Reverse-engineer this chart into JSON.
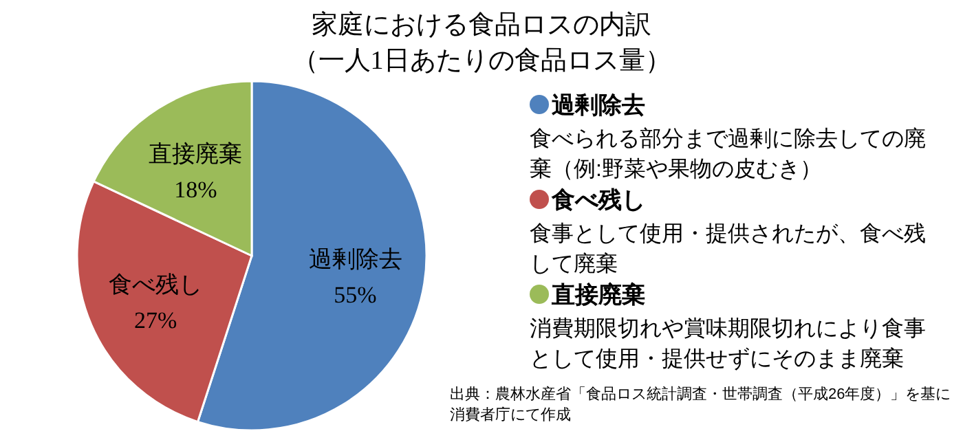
{
  "chart_data": {
    "type": "pie",
    "title": "家庭における食品ロスの内訳",
    "subtitle": "（一人1日あたりの食品ロス量）",
    "categories": [
      "過剰除去",
      "食べ残し",
      "直接廃棄"
    ],
    "values": [
      55,
      27,
      18
    ],
    "colors": [
      "#4f81bd",
      "#c0504d",
      "#9bbb59"
    ],
    "value_labels": [
      "55%",
      "27%",
      "18%"
    ],
    "legend": "right",
    "annotations": [
      "食べられる部分まで過剰に除去しての廃棄（例:野菜や果物の皮むき）",
      "食事として使用・提供されたが、食べ残して廃棄",
      "消費期限切れや賞味期限切れにより食事として使用・提供せずにそのまま廃棄",
      "出典：農林水産省「食品ロス統計調査・世帯調査（平成26年度）」を基に消費者庁にて作成"
    ]
  }
}
